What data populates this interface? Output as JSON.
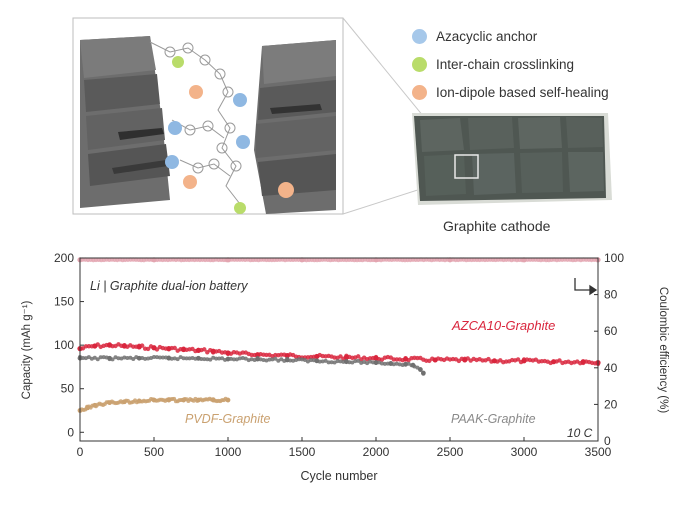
{
  "legend": {
    "items": [
      {
        "label": "Azacyclic anchor",
        "color": "#a6c8ea",
        "icon": "blue-dot-icon"
      },
      {
        "label": "Inter-chain crosslinking",
        "color": "#b9dc6a",
        "icon": "green-dot-icon"
      },
      {
        "label": "Ion-dipole based self-healing",
        "color": "#f3b38a",
        "icon": "orange-dot-icon"
      }
    ]
  },
  "cathode_caption": "Graphite cathode",
  "chart_data": {
    "type": "scatter",
    "annotation_title": "Li | Graphite dual-ion battery",
    "rate_label": "10 C",
    "xlabel": "Cycle number",
    "ylabel_left": "Capacity (mAh g⁻¹)",
    "ylabel_right": "Coulombic efficiency (%)",
    "xlim": [
      0,
      3500
    ],
    "ylim_left": [
      -10,
      200
    ],
    "ylim_right": [
      0,
      100
    ],
    "x_ticks": [
      "0",
      "500",
      "1000",
      "1500",
      "2000",
      "2500",
      "3000",
      "3500"
    ],
    "y_ticks_left": [
      "0",
      "50",
      "100",
      "150",
      "200"
    ],
    "y_ticks_right": [
      "0",
      "20",
      "40",
      "60",
      "80",
      "100"
    ],
    "colors": {
      "azca": "#d9263d",
      "paak": "#707070",
      "pvdf": "#caa170",
      "ce": "#e3a5b0"
    },
    "series": [
      {
        "name": "AZCA10-Graphite",
        "color": "#d9263d",
        "axis": "left",
        "x": [
          0,
          100,
          200,
          300,
          400,
          500,
          600,
          700,
          800,
          900,
          1000,
          1200,
          1400,
          1600,
          1800,
          2000,
          2200,
          2400,
          2600,
          2800,
          3000,
          3200,
          3400,
          3500
        ],
        "y": [
          96,
          99,
          100,
          99,
          98,
          97,
          96,
          95,
          94,
          93,
          91,
          89,
          88,
          87,
          86,
          85,
          84,
          83,
          83,
          82,
          82,
          81,
          81,
          80
        ]
      },
      {
        "name": "PAAK-Graphite",
        "color": "#707070",
        "axis": "left",
        "x": [
          0,
          200,
          400,
          600,
          800,
          1000,
          1200,
          1400,
          1600,
          1800,
          2000,
          2100,
          2200,
          2250,
          2300,
          2320
        ],
        "y": [
          85,
          85,
          85,
          85,
          85,
          84,
          84,
          83,
          82,
          81,
          80,
          79,
          78,
          77,
          72,
          68
        ]
      },
      {
        "name": "PVDF-Graphite",
        "color": "#caa170",
        "axis": "left",
        "x": [
          0,
          50,
          100,
          200,
          300,
          400,
          500,
          600,
          700,
          800,
          900,
          1000
        ],
        "y": [
          25,
          28,
          31,
          34,
          35,
          36,
          37,
          37,
          37,
          37,
          37,
          37
        ]
      },
      {
        "name": "",
        "color": "#e3a5b0",
        "axis": "right",
        "x": [
          0,
          500,
          1000,
          1500,
          2000,
          2500,
          3000,
          3500
        ],
        "y": [
          99,
          99,
          99,
          99,
          99,
          99,
          99,
          99
        ]
      }
    ]
  }
}
